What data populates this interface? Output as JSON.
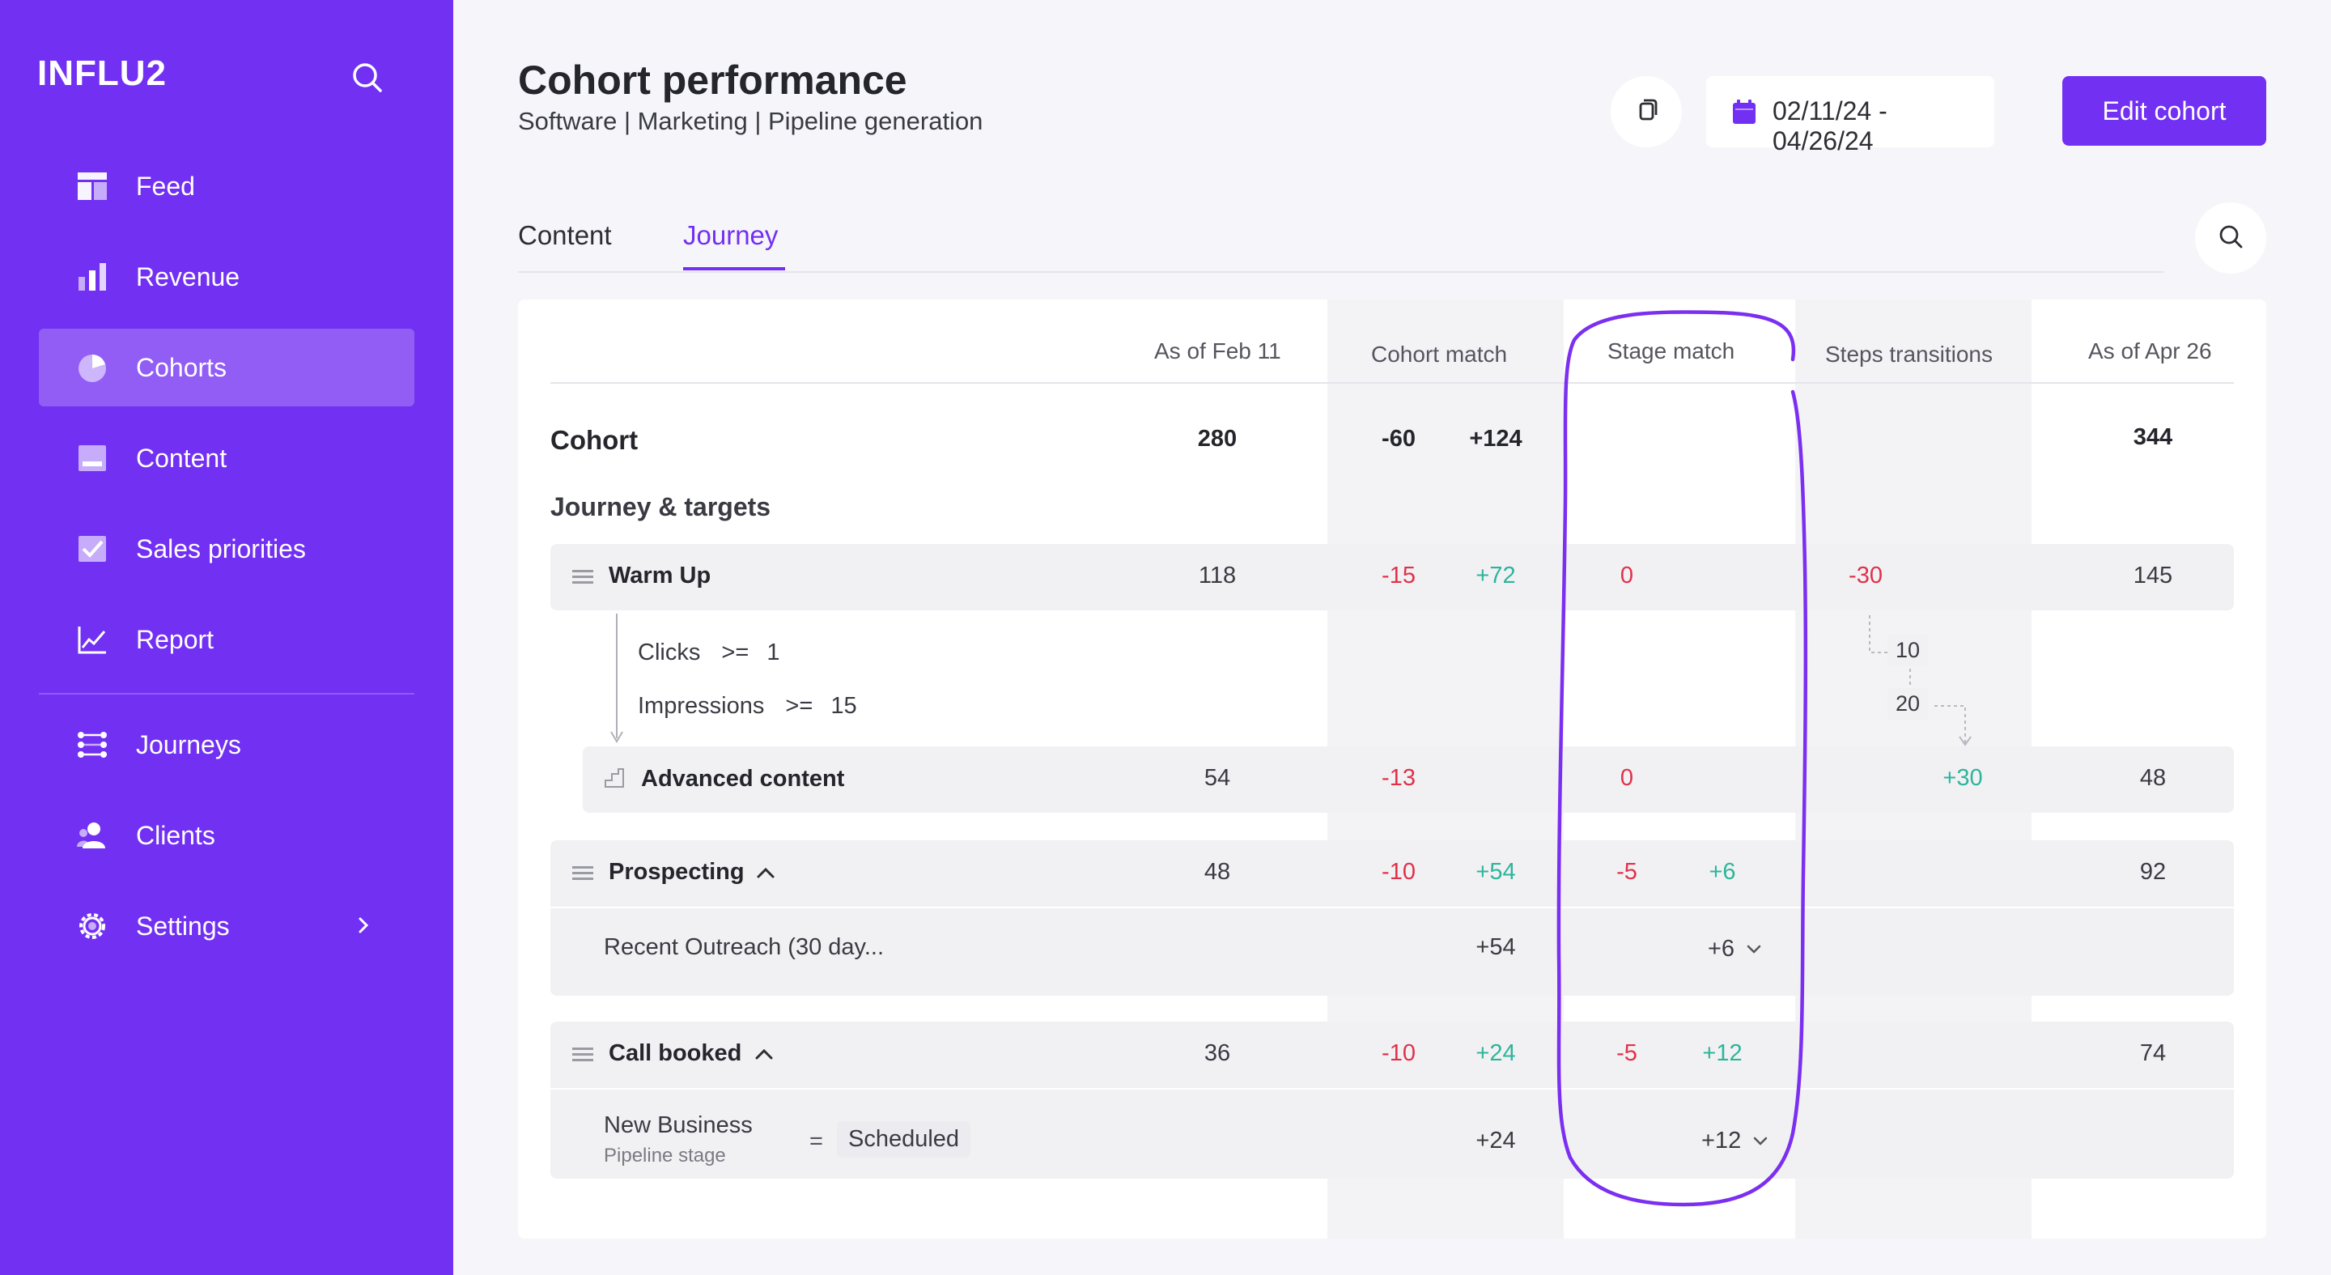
{
  "sidebar": {
    "logo": "INFLU2",
    "items": [
      {
        "label": "Feed",
        "icon": "feed-icon"
      },
      {
        "label": "Revenue",
        "icon": "bar-chart-icon"
      },
      {
        "label": "Cohorts",
        "icon": "pie-chart-icon",
        "active": true
      },
      {
        "label": "Content",
        "icon": "content-icon"
      },
      {
        "label": "Sales priorities",
        "icon": "checkbox-icon"
      },
      {
        "label": "Report",
        "icon": "line-chart-icon"
      },
      {
        "label": "Journeys",
        "icon": "journeys-icon"
      },
      {
        "label": "Clients",
        "icon": "clients-icon"
      },
      {
        "label": "Settings",
        "icon": "gear-icon"
      }
    ]
  },
  "header": {
    "title": "Cohort performance",
    "subtitle": "Software | Marketing | Pipeline generation",
    "date_range": "02/11/24 - 04/26/24",
    "edit_label": "Edit cohort"
  },
  "tabs": [
    {
      "label": "Content"
    },
    {
      "label": "Journey",
      "active": true
    }
  ],
  "table": {
    "columns": [
      "As of Feb 11",
      "Cohort match",
      "Stage match",
      "Steps transitions",
      "As of Apr 26"
    ],
    "cohort": {
      "label": "Cohort",
      "start": "280",
      "match_neg": "-60",
      "match_pos": "+124",
      "end": "344"
    },
    "section_label": "Journey & targets",
    "warm_up": {
      "label": "Warm Up",
      "start": "118",
      "match_neg": "-15",
      "match_pos": "+72",
      "stage": "0",
      "steps": "-30",
      "end": "145"
    },
    "conditions": [
      {
        "metric": "Clicks",
        "op": ">=",
        "value": "1"
      },
      {
        "metric": "Impressions",
        "op": ">=",
        "value": "15"
      }
    ],
    "transition_boxes": [
      "10",
      "20"
    ],
    "advanced": {
      "label": "Advanced content",
      "start": "54",
      "match_neg": "-13",
      "stage": "0",
      "steps": "+30",
      "end": "48"
    },
    "prospecting": {
      "label": "Prospecting",
      "start": "48",
      "match_neg": "-10",
      "match_pos": "+54",
      "stage_neg": "-5",
      "stage_pos": "+6",
      "end": "92"
    },
    "recent_outreach": {
      "label": "Recent Outreach (30 day...",
      "match_pos": "+54",
      "stage_pos": "+6"
    },
    "call_booked": {
      "label": "Call booked",
      "start": "36",
      "match_neg": "-10",
      "match_pos": "+24",
      "stage_neg": "-5",
      "stage_pos": "+12",
      "end": "74"
    },
    "new_business": {
      "label": "New Business",
      "sublabel": "Pipeline stage",
      "op": "=",
      "value": "Scheduled",
      "match_pos": "+24",
      "stage_pos": "+12"
    }
  },
  "colors": {
    "brand": "#7230f3",
    "negative": "#e0314a",
    "positive": "#2db59a"
  }
}
